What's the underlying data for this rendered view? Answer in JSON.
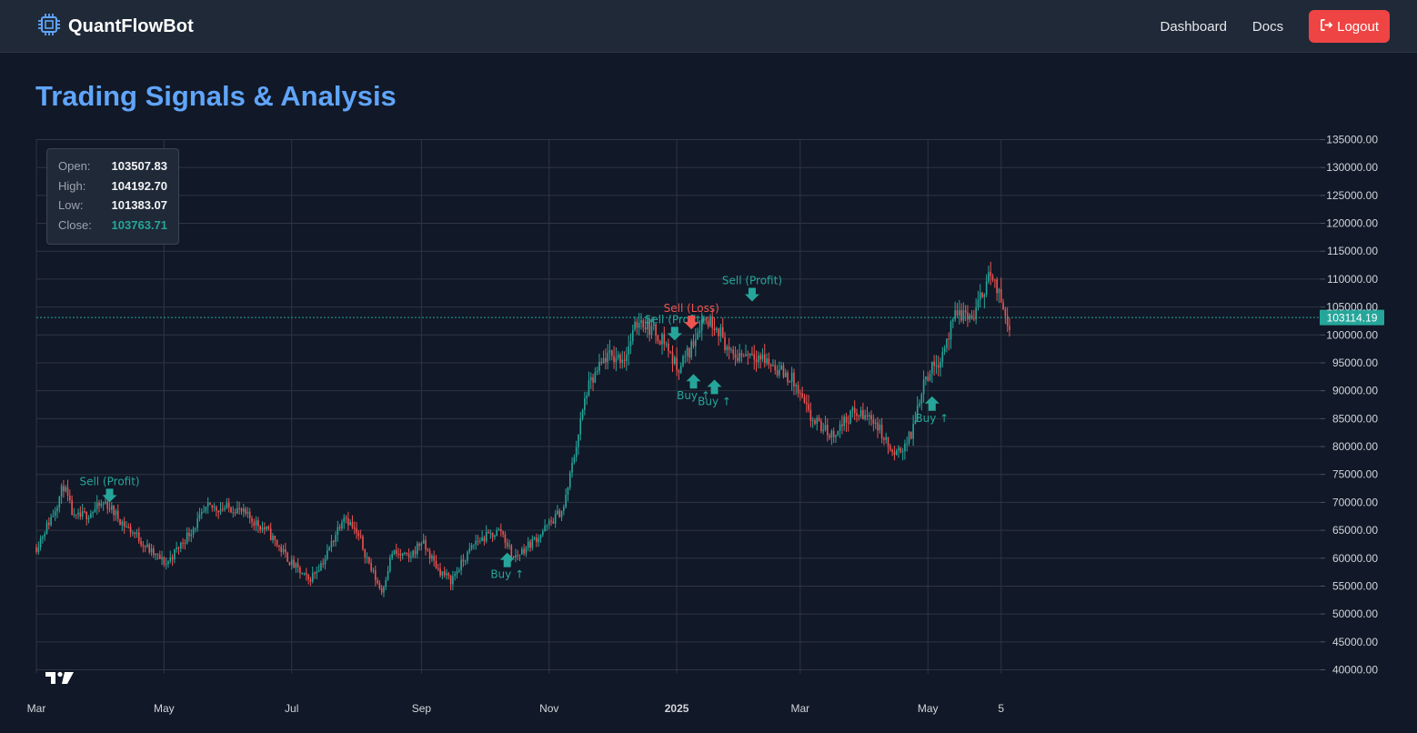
{
  "header": {
    "brand": "QuantFlowBot",
    "nav": {
      "dashboard": "Dashboard",
      "docs": "Docs",
      "logout": "Logout"
    }
  },
  "page": {
    "title": "Trading Signals & Analysis"
  },
  "ohlc_legend": {
    "open_label": "Open:",
    "open": "103507.83",
    "high_label": "High:",
    "high": "104192.70",
    "low_label": "Low:",
    "low": "101383.07",
    "close_label": "Close:",
    "close": "103763.71"
  },
  "colors": {
    "background": "#111827",
    "accent": "#60a5fa",
    "up": "#26a69a",
    "down": "#ef5350",
    "logout": "#ef4444"
  },
  "chart_data": {
    "type": "candlestick",
    "y_ticks": [
      "135000.00",
      "130000.00",
      "125000.00",
      "120000.00",
      "115000.00",
      "110000.00",
      "105000.00",
      "100000.00",
      "95000.00",
      "90000.00",
      "85000.00",
      "80000.00",
      "75000.00",
      "70000.00",
      "65000.00",
      "60000.00",
      "55000.00",
      "50000.00",
      "45000.00",
      "40000.00"
    ],
    "ylim": [
      40000,
      135000
    ],
    "x_ticks": [
      {
        "label": "Mar",
        "day": 0
      },
      {
        "label": "May",
        "day": 61
      },
      {
        "label": "Jul",
        "day": 122
      },
      {
        "label": "Sep",
        "day": 184
      },
      {
        "label": "Nov",
        "day": 245
      },
      {
        "label": "2025",
        "day": 306
      },
      {
        "label": "Mar",
        "day": 365
      },
      {
        "label": "May",
        "day": 426
      },
      {
        "label": "5",
        "day": 461
      }
    ],
    "current_price": "103114.19",
    "current_price_value": 103114.19,
    "grid": true,
    "anchors": [
      [
        0,
        62000
      ],
      [
        8,
        68000
      ],
      [
        13,
        73000
      ],
      [
        18,
        67000
      ],
      [
        25,
        68000
      ],
      [
        33,
        70000
      ],
      [
        42,
        66000
      ],
      [
        48,
        64000
      ],
      [
        55,
        61000
      ],
      [
        62,
        59000
      ],
      [
        70,
        63000
      ],
      [
        82,
        69000
      ],
      [
        95,
        69000
      ],
      [
        110,
        65000
      ],
      [
        122,
        59000
      ],
      [
        130,
        56000
      ],
      [
        138,
        60000
      ],
      [
        147,
        68000
      ],
      [
        155,
        63000
      ],
      [
        160,
        58000
      ],
      [
        165,
        54000
      ],
      [
        170,
        61000
      ],
      [
        178,
        60000
      ],
      [
        184,
        63000
      ],
      [
        192,
        58000
      ],
      [
        198,
        56000
      ],
      [
        210,
        63000
      ],
      [
        222,
        65000
      ],
      [
        228,
        60000
      ],
      [
        240,
        64000
      ],
      [
        252,
        69000
      ],
      [
        263,
        90000
      ],
      [
        272,
        96000
      ],
      [
        281,
        96000
      ],
      [
        288,
        103000
      ],
      [
        294,
        101000
      ],
      [
        300,
        99000
      ],
      [
        306,
        94000
      ],
      [
        312,
        97000
      ],
      [
        318,
        103000
      ],
      [
        325,
        102000
      ],
      [
        332,
        96000
      ],
      [
        342,
        97000
      ],
      [
        350,
        95000
      ],
      [
        361,
        92000
      ],
      [
        370,
        85000
      ],
      [
        380,
        82000
      ],
      [
        390,
        86000
      ],
      [
        400,
        85000
      ],
      [
        410,
        78000
      ],
      [
        418,
        82000
      ],
      [
        424,
        92000
      ],
      [
        432,
        96000
      ],
      [
        440,
        104000
      ],
      [
        448,
        103000
      ],
      [
        455,
        111000
      ],
      [
        460,
        107000
      ],
      [
        465,
        102000
      ]
    ],
    "annotations": [
      {
        "type": "sell",
        "label": "Sell (Profit)",
        "day": 35,
        "price": 70000,
        "color": "#26a69a"
      },
      {
        "type": "buy",
        "label": "Buy ↑",
        "day": 225,
        "price": 61000,
        "color": "#26a69a"
      },
      {
        "type": "sell",
        "label": "Sell (Profit)",
        "day": 305,
        "price": 99000,
        "color": "#26a69a"
      },
      {
        "type": "sell",
        "label": "Sell (Loss)",
        "day": 313,
        "price": 101000,
        "color": "#ef5350"
      },
      {
        "type": "buy",
        "label": "Buy ↑",
        "day": 314,
        "price": 93000,
        "color": "#26a69a"
      },
      {
        "type": "buy",
        "label": "Buy ↑",
        "day": 324,
        "price": 92000,
        "color": "#26a69a"
      },
      {
        "type": "sell",
        "label": "Sell (Profit)",
        "day": 342,
        "price": 106000,
        "color": "#26a69a"
      },
      {
        "type": "buy",
        "label": "Buy ↑",
        "day": 428,
        "price": 89000,
        "color": "#26a69a"
      }
    ]
  }
}
